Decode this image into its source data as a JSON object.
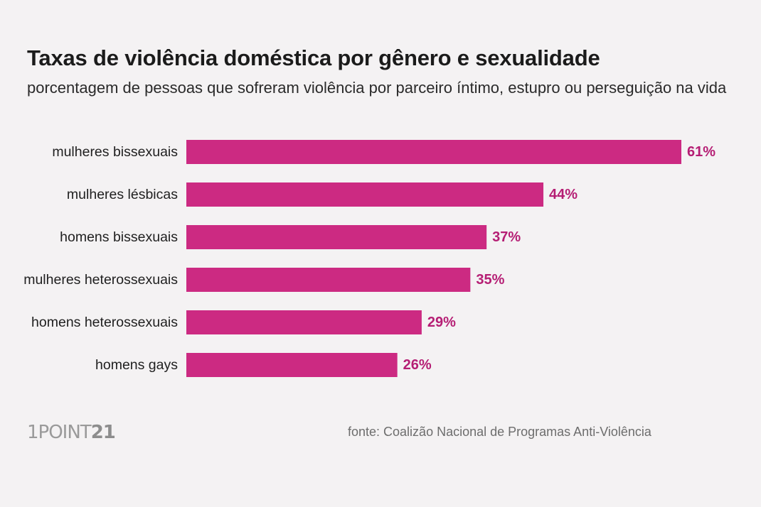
{
  "header": {
    "title": "Taxas de violência doméstica por gênero e sexualidade",
    "subtitle": "porcentagem de pessoas que sofreram violência por parceiro íntimo, estupro ou perseguição na vida"
  },
  "footer": {
    "logo_text": "1POINT",
    "logo_number": "21",
    "source": "fonte: Coalizão Nacional de Programas Anti-Violência"
  },
  "colors": {
    "bar": "#cc2a82",
    "value_label": "#b51e74",
    "background": "#f4f2f3"
  },
  "chart_data": {
    "type": "bar",
    "orientation": "horizontal",
    "title": "Taxas de violência doméstica por gênero e sexualidade",
    "subtitle": "porcentagem de pessoas que sofreram violência por parceiro íntimo, estupro ou perseguição na vida",
    "categories": [
      "mulheres bissexuais",
      "mulheres lésbicas",
      "homens bissexuais",
      "mulheres heterossexuais",
      "homens heterossexuais",
      "homens gays"
    ],
    "values": [
      61,
      44,
      37,
      35,
      29,
      26
    ],
    "value_labels": [
      "61%",
      "44%",
      "37%",
      "35%",
      "29%",
      "26%"
    ],
    "xlabel": "",
    "ylabel": "",
    "xlim": [
      0,
      61
    ],
    "grid": false,
    "legend": "none"
  }
}
